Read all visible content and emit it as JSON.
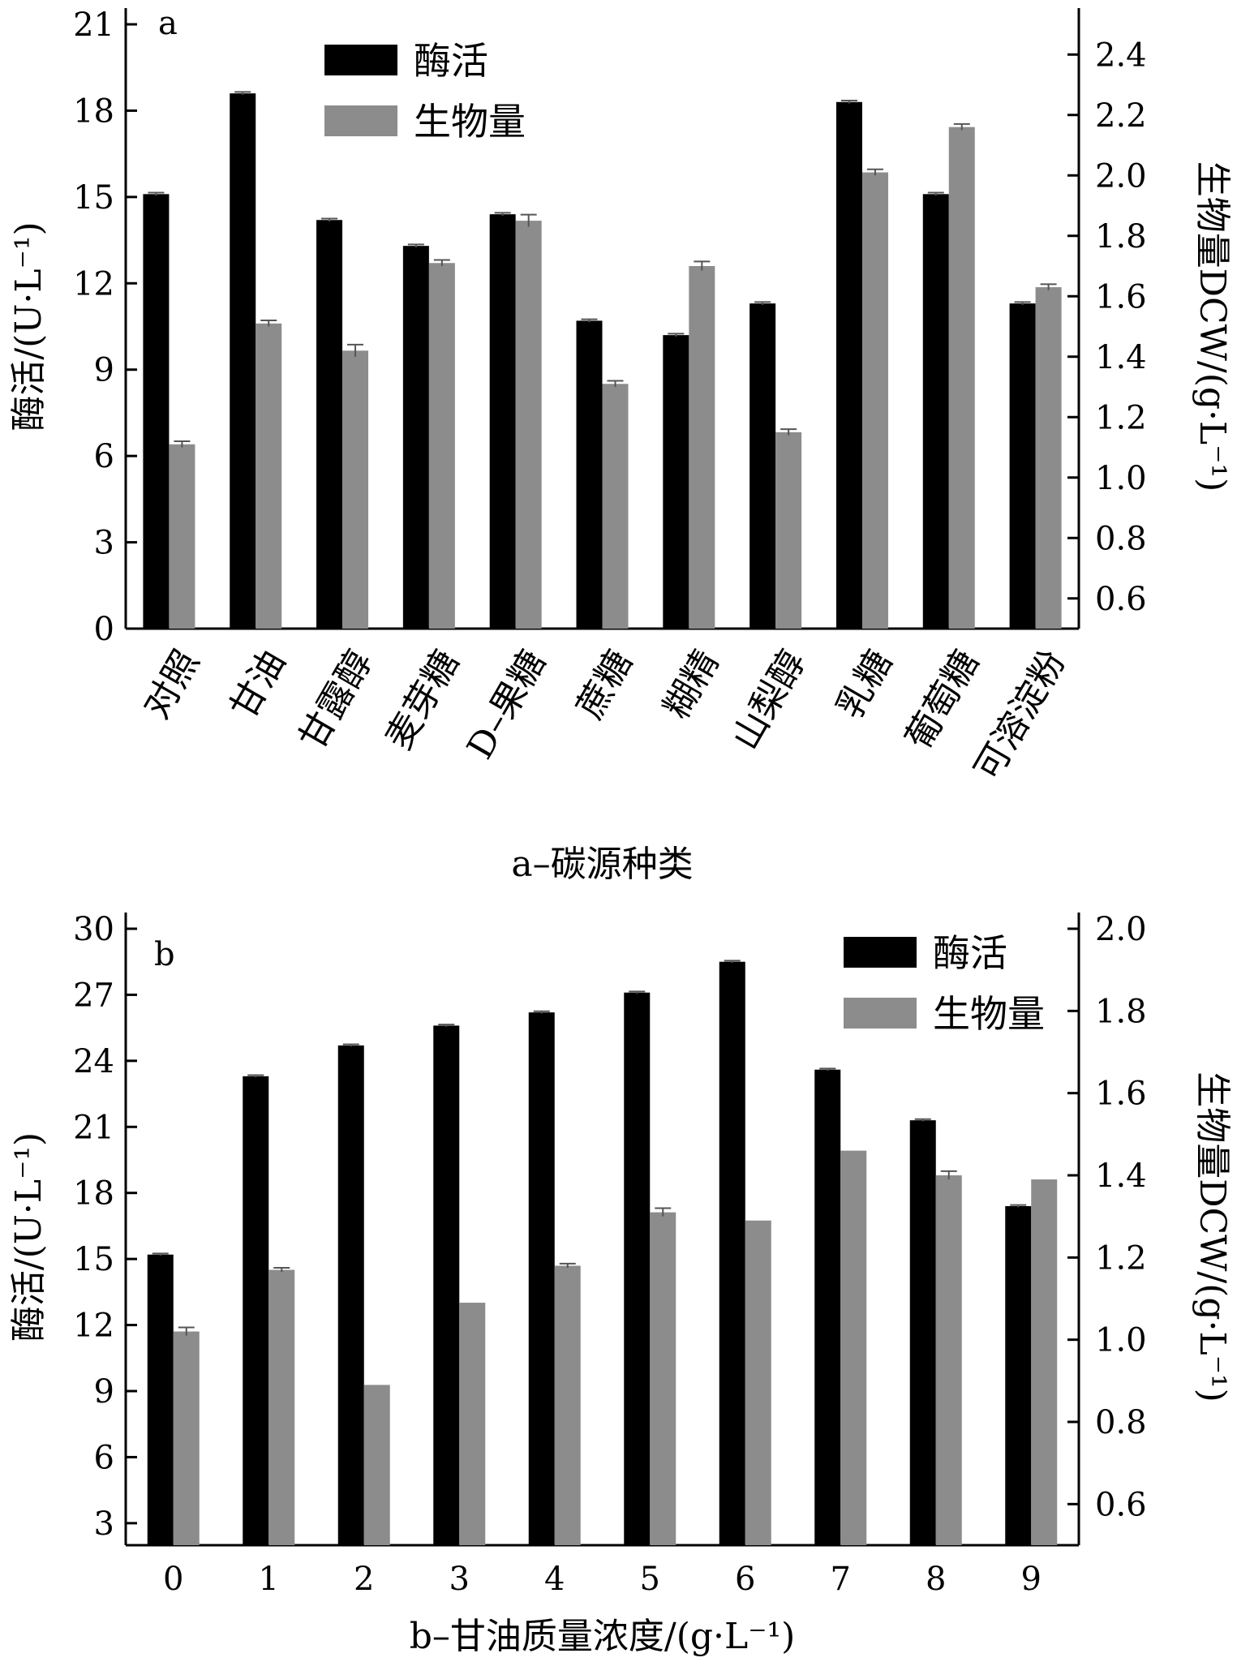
{
  "colors": {
    "enzyme": "#000000",
    "biomass": "#8c8c8c",
    "axis": "#000000",
    "error": "#555555"
  },
  "chart_data": [
    {
      "panel": "a",
      "type": "bar",
      "caption": "a–碳源种类",
      "categories": [
        "对照",
        "甘油",
        "甘露醇",
        "麦芽糖",
        "D–果糖",
        "蔗糖",
        "糊精",
        "山梨醇",
        "乳糖",
        "葡萄糖",
        "可溶淀粉"
      ],
      "ylabel_left": "酶活/(U·L⁻¹)",
      "ylabel_right": "生物量DCW/(g·L⁻¹)",
      "ylim_left": [
        0,
        21
      ],
      "yticks_left": [
        0,
        3,
        6,
        9,
        12,
        15,
        18,
        21
      ],
      "ylim_right": [
        0.5,
        2.5
      ],
      "yticks_right": [
        "0.6",
        "0.8",
        "1.0",
        "1.2",
        "1.4",
        "1.6",
        "1.8",
        "2.0",
        "2.2",
        "2.4"
      ],
      "legend_position": "top-left",
      "series": [
        {
          "name": "酶活",
          "axis": "left",
          "values": [
            15.1,
            18.6,
            14.2,
            13.3,
            14.4,
            10.7,
            10.2,
            11.3,
            18.3,
            15.1,
            11.3
          ],
          "errors": [
            0.05,
            0.05,
            0.05,
            0.05,
            0.05,
            0.05,
            0.05,
            0.05,
            0.05,
            0.05,
            0.05
          ]
        },
        {
          "name": "生物量",
          "axis": "right",
          "values": [
            1.11,
            1.51,
            1.42,
            1.71,
            1.85,
            1.31,
            1.7,
            1.15,
            2.01,
            2.16,
            1.63
          ],
          "errors": [
            0.01,
            0.01,
            0.02,
            0.01,
            0.02,
            0.01,
            0.015,
            0.01,
            0.01,
            0.01,
            0.01
          ]
        }
      ]
    },
    {
      "panel": "b",
      "type": "bar",
      "caption": "b–甘油质量浓度/(g·L⁻¹)",
      "categories": [
        "0",
        "1",
        "2",
        "3",
        "4",
        "5",
        "6",
        "7",
        "8",
        "9"
      ],
      "ylabel_left": "酶活/(U·L⁻¹)",
      "ylabel_right": "生物量DCW/(g·L⁻¹)",
      "ylim_left": [
        2,
        30
      ],
      "yticks_left": [
        3,
        6,
        9,
        12,
        15,
        18,
        21,
        24,
        27,
        30
      ],
      "ylim_right": [
        0.5,
        2.0
      ],
      "yticks_right": [
        "0.6",
        "0.8",
        "1.0",
        "1.2",
        "1.4",
        "1.6",
        "1.8",
        "2.0"
      ],
      "legend_position": "top-right",
      "series": [
        {
          "name": "酶活",
          "axis": "left",
          "values": [
            15.2,
            23.3,
            24.7,
            25.6,
            26.2,
            27.1,
            28.5,
            23.6,
            21.3,
            17.4
          ],
          "errors": [
            0.05,
            0.05,
            0.05,
            0.05,
            0.05,
            0.05,
            0.05,
            0.05,
            0.05,
            0.05
          ]
        },
        {
          "name": "生物量",
          "axis": "right",
          "values": [
            1.02,
            1.17,
            0.89,
            1.09,
            1.18,
            1.31,
            1.29,
            1.46,
            1.4,
            1.39
          ],
          "errors": [
            0.01,
            0.005,
            0.0,
            0.0,
            0.005,
            0.01,
            0.0,
            0.0,
            0.01,
            0.0
          ]
        }
      ]
    }
  ]
}
